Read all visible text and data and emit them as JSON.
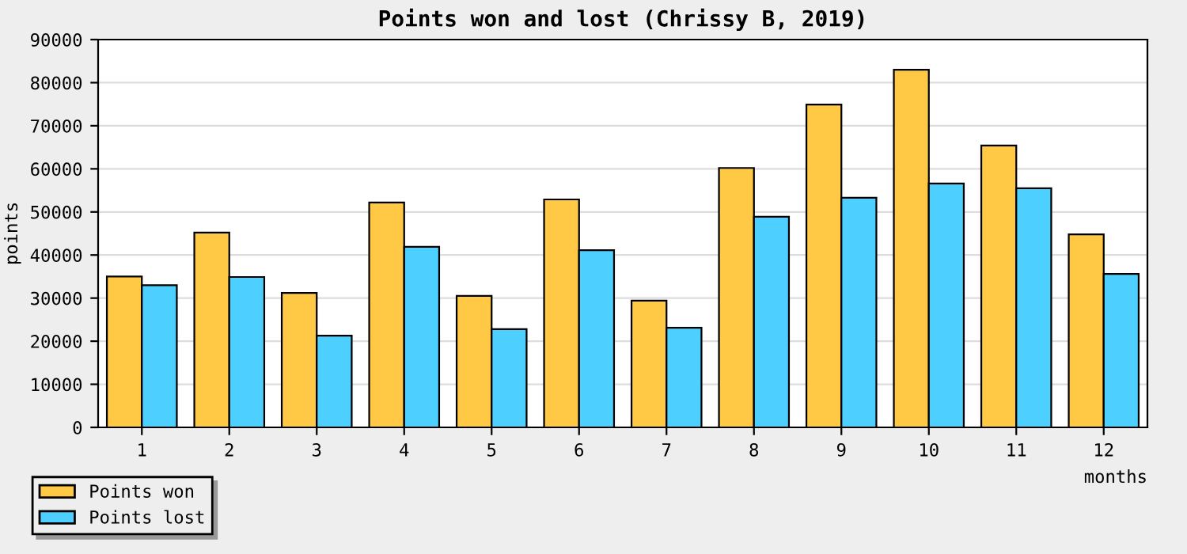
{
  "chart_data": {
    "type": "bar",
    "title": "Points won and lost (Chrissy B, 2019)",
    "xlabel": "months",
    "ylabel": "points",
    "categories": [
      "1",
      "2",
      "3",
      "4",
      "5",
      "6",
      "7",
      "8",
      "9",
      "10",
      "11",
      "12"
    ],
    "series": [
      {
        "name": "Points won",
        "color": "#ffc845",
        "values": [
          35000,
          45200,
          31200,
          52200,
          30500,
          52900,
          29400,
          60200,
          74900,
          83000,
          65400,
          44800
        ]
      },
      {
        "name": "Points lost",
        "color": "#4dcfff",
        "values": [
          33000,
          34900,
          21300,
          41900,
          22800,
          41100,
          23100,
          48900,
          53300,
          56600,
          55500,
          35600
        ]
      }
    ],
    "ylim": [
      0,
      90000
    ],
    "yticks": [
      0,
      10000,
      20000,
      30000,
      40000,
      50000,
      60000,
      70000,
      80000,
      90000
    ],
    "grid": "y",
    "legend": "bottom left"
  }
}
